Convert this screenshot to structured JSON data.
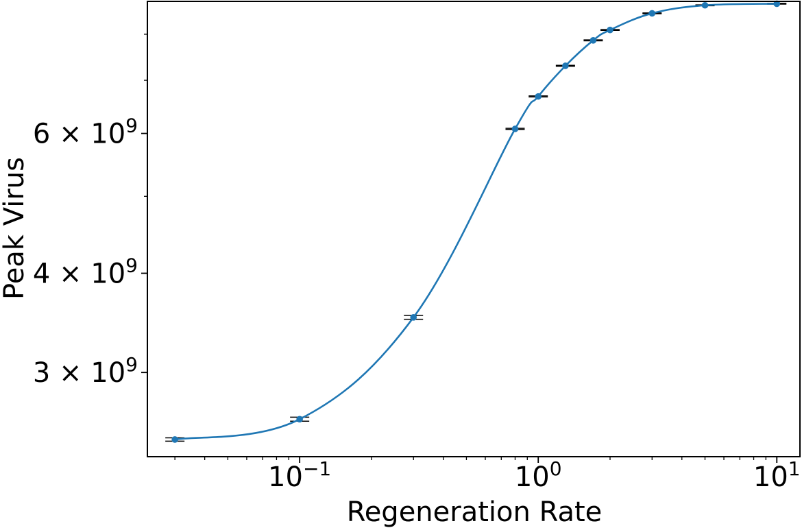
{
  "chart_data": {
    "type": "line",
    "title": "",
    "xlabel": "Regeneration Rate",
    "ylabel": "Peak Virus",
    "x_scale": "log",
    "y_scale": "log",
    "xlim": [
      0.023,
      12.5
    ],
    "ylim": [
      2350000000.0,
      8800000000.0
    ],
    "grid": false,
    "legend": "none",
    "x_ticks": [
      {
        "value": 0.1,
        "base": "10",
        "exp": "−1"
      },
      {
        "value": 1,
        "base": "10",
        "exp": "0"
      },
      {
        "value": 10,
        "base": "10",
        "exp": "1"
      }
    ],
    "y_ticks": [
      {
        "value": 3000000000.0,
        "mant": "3",
        "times": "×",
        "base": "10",
        "exp": "9"
      },
      {
        "value": 4000000000.0,
        "mant": "4",
        "times": "×",
        "base": "10",
        "exp": "9"
      },
      {
        "value": 6000000000.0,
        "mant": "6",
        "times": "×",
        "base": "10",
        "exp": "9"
      }
    ],
    "series": [
      {
        "color": "#1f77b4",
        "errorbar_color": "#000000",
        "x": [
          0.03,
          0.1,
          0.3,
          0.8,
          1.0,
          1.3,
          1.7,
          2.0,
          3.0,
          5.0,
          10.0
        ],
        "y": [
          2470000000.0,
          2620000000.0,
          3520000000.0,
          6080000000.0,
          6680000000.0,
          7300000000.0,
          7860000000.0,
          8100000000.0,
          8500000000.0,
          8700000000.0,
          8740000000.0
        ],
        "yerr": [
          12000000.0,
          15000000.0,
          20000000.0,
          10000000.0,
          10000000.0,
          10000000.0,
          10000000.0,
          10000000.0,
          10000000.0,
          10000000.0,
          10000000.0
        ]
      }
    ]
  }
}
